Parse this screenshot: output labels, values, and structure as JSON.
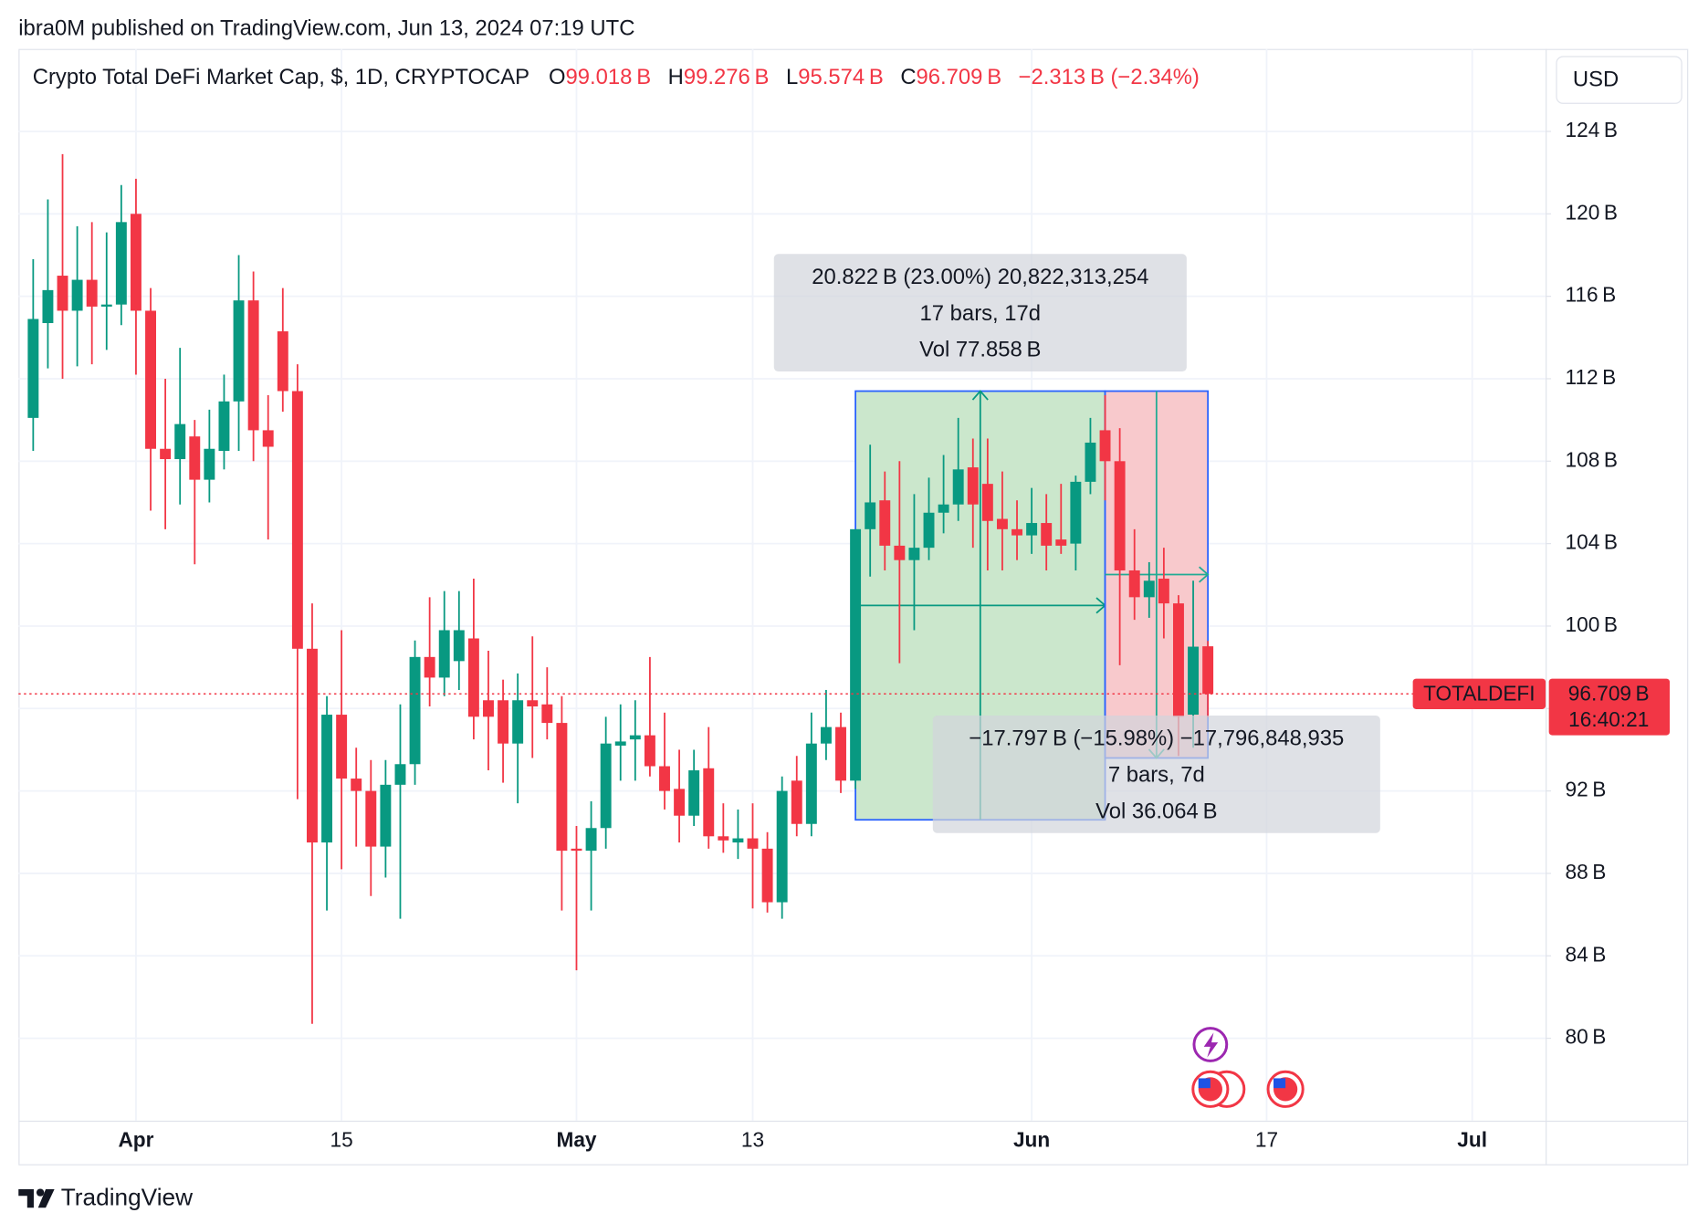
{
  "header": {
    "published": "ibra0M published on TradingView.com, Jun 13, 2024 07:19 UTC"
  },
  "footer": {
    "brand": "TradingView"
  },
  "chart_data": {
    "type": "candlestick",
    "legend": {
      "name": "Crypto Total DeFi Market Cap, $, 1D, CRYPTOCAP",
      "items": [
        {
          "key": "O",
          "text": "99.018 B"
        },
        {
          "key": "H",
          "text": "99.276 B"
        },
        {
          "key": "L",
          "text": "95.574 B"
        },
        {
          "key": "C",
          "text": "96.709 B"
        }
      ],
      "change": "−2.313 B (−2.34%)"
    },
    "currency": "USD",
    "up_color": "#089981",
    "down_color": "#f23645",
    "x": [
      "2024-03-25",
      "2024-03-26",
      "2024-03-27",
      "2024-03-28",
      "2024-03-29",
      "2024-03-30",
      "2024-03-31",
      "2024-04-01",
      "2024-04-02",
      "2024-04-03",
      "2024-04-04",
      "2024-04-05",
      "2024-04-06",
      "2024-04-07",
      "2024-04-08",
      "2024-04-09",
      "2024-04-10",
      "2024-04-11",
      "2024-04-12",
      "2024-04-13",
      "2024-04-14",
      "2024-04-15",
      "2024-04-16",
      "2024-04-17",
      "2024-04-18",
      "2024-04-19",
      "2024-04-20",
      "2024-04-21",
      "2024-04-22",
      "2024-04-23",
      "2024-04-24",
      "2024-04-25",
      "2024-04-26",
      "2024-04-27",
      "2024-04-28",
      "2024-04-29",
      "2024-04-30",
      "2024-05-01",
      "2024-05-02",
      "2024-05-03",
      "2024-05-04",
      "2024-05-05",
      "2024-05-06",
      "2024-05-07",
      "2024-05-08",
      "2024-05-09",
      "2024-05-10",
      "2024-05-11",
      "2024-05-12",
      "2024-05-13",
      "2024-05-14",
      "2024-05-15",
      "2024-05-16",
      "2024-05-17",
      "2024-05-18",
      "2024-05-19",
      "2024-05-20",
      "2024-05-21",
      "2024-05-22",
      "2024-05-23",
      "2024-05-24",
      "2024-05-25",
      "2024-05-26",
      "2024-05-27",
      "2024-05-28",
      "2024-05-29",
      "2024-05-30",
      "2024-05-31",
      "2024-06-01",
      "2024-06-02",
      "2024-06-03",
      "2024-06-04",
      "2024-06-05",
      "2024-06-06",
      "2024-06-07",
      "2024-06-08",
      "2024-06-09",
      "2024-06-10",
      "2024-06-11",
      "2024-06-12",
      "2024-06-13"
    ],
    "open": [
      110.1,
      114.7,
      117.0,
      115.3,
      116.8,
      115.5,
      115.6,
      120.0,
      115.3,
      108.6,
      108.1,
      109.2,
      107.1,
      108.5,
      110.9,
      115.8,
      109.5,
      114.3,
      111.4,
      98.9,
      89.5,
      95.7,
      92.6,
      92.0,
      89.3,
      92.3,
      93.3,
      98.5,
      97.5,
      98.3,
      99.4,
      96.4,
      96.4,
      94.3,
      96.4,
      96.2,
      95.3,
      89.2,
      89.1,
      90.2,
      94.2,
      94.5,
      94.7,
      93.2,
      92.1,
      90.8,
      93.1,
      89.8,
      89.5,
      89.7,
      89.2,
      86.6,
      92.5,
      90.4,
      94.3,
      95.1,
      92.5,
      104.7,
      106.1,
      103.9,
      103.2,
      103.8,
      105.5,
      105.9,
      107.7,
      106.9,
      105.2,
      104.7,
      104.4,
      105.0,
      104.2,
      104.0,
      107.0,
      109.5,
      108.0,
      102.7,
      101.4,
      102.3,
      101.1,
      95.7,
      99.018
    ],
    "high": [
      117.8,
      120.7,
      122.9,
      119.4,
      119.6,
      119.1,
      121.4,
      121.7,
      116.4,
      112.0,
      113.5,
      110.0,
      110.5,
      112.2,
      118.0,
      117.2,
      111.2,
      116.4,
      112.7,
      101.1,
      96.6,
      99.8,
      94.1,
      93.5,
      93.5,
      96.2,
      99.3,
      101.4,
      101.7,
      101.7,
      102.3,
      98.8,
      97.4,
      97.7,
      99.5,
      98.0,
      96.6,
      90.3,
      91.5,
      95.6,
      96.2,
      96.4,
      98.5,
      95.8,
      94.0,
      94.0,
      95.1,
      91.4,
      91.1,
      91.4,
      90.0,
      92.7,
      93.7,
      95.8,
      96.9,
      95.8,
      104.7,
      108.8,
      107.5,
      108.0,
      106.4,
      107.2,
      108.3,
      110.1,
      109.1,
      109.1,
      107.5,
      106.1,
      106.7,
      106.4,
      106.9,
      107.3,
      110.1,
      111.2,
      109.6,
      104.7,
      103.1,
      103.8,
      101.5,
      102.2,
      99.276
    ],
    "low": [
      108.5,
      112.5,
      112.0,
      112.6,
      112.7,
      113.4,
      114.6,
      112.2,
      105.6,
      104.7,
      105.9,
      103.0,
      106.0,
      107.6,
      108.5,
      108.0,
      104.2,
      110.4,
      91.6,
      80.7,
      86.2,
      88.2,
      89.3,
      86.9,
      87.8,
      85.8,
      92.3,
      96.1,
      96.6,
      96.9,
      94.5,
      93.0,
      92.4,
      91.4,
      93.6,
      94.5,
      86.2,
      83.3,
      86.2,
      89.2,
      92.5,
      92.5,
      92.7,
      91.1,
      89.5,
      90.3,
      89.2,
      89.0,
      88.7,
      86.3,
      86.1,
      85.8,
      89.8,
      89.8,
      93.5,
      91.9,
      92.1,
      102.4,
      102.7,
      98.2,
      99.8,
      103.2,
      104.5,
      105.1,
      103.8,
      102.7,
      102.7,
      103.2,
      103.5,
      102.7,
      103.5,
      102.7,
      106.4,
      106.1,
      98.1,
      100.3,
      100.4,
      99.4,
      93.7,
      94.1,
      95.574
    ],
    "close": [
      114.9,
      116.3,
      115.3,
      116.8,
      115.5,
      115.6,
      119.6,
      115.3,
      108.6,
      108.1,
      109.8,
      107.1,
      108.6,
      110.9,
      115.8,
      109.5,
      108.7,
      111.4,
      98.9,
      89.5,
      95.7,
      92.6,
      92.0,
      89.3,
      92.3,
      93.3,
      98.5,
      97.5,
      99.8,
      99.8,
      95.6,
      95.6,
      94.3,
      96.4,
      96.1,
      95.3,
      89.1,
      89.1,
      90.2,
      94.3,
      94.4,
      94.7,
      93.2,
      92.0,
      90.8,
      93.0,
      89.8,
      89.6,
      89.7,
      89.2,
      86.6,
      92.0,
      90.4,
      94.3,
      95.1,
      92.5,
      104.7,
      106.0,
      103.9,
      103.2,
      103.8,
      105.5,
      105.9,
      107.6,
      105.9,
      105.1,
      104.7,
      104.4,
      105.0,
      103.9,
      103.9,
      107.0,
      108.9,
      108.0,
      102.7,
      101.4,
      102.2,
      101.1,
      95.6,
      99.0,
      96.709
    ],
    "xlim": [
      "2024-03-24",
      "2024-07-06"
    ],
    "xticks": [
      {
        "value": "2024-04-01",
        "label": "Apr"
      },
      {
        "value": "2024-04-15",
        "label": "15"
      },
      {
        "value": "2024-05-01",
        "label": "May"
      },
      {
        "value": "2024-05-13",
        "label": "13"
      },
      {
        "value": "2024-06-01",
        "label": "Jun"
      },
      {
        "value": "2024-06-17",
        "label": "17"
      },
      {
        "value": "2024-07-01",
        "label": "Jul"
      }
    ],
    "ylim": [
      76,
      128
    ],
    "yticks": [
      {
        "value": 80,
        "label": "80 B"
      },
      {
        "value": 84,
        "label": "84 B"
      },
      {
        "value": 88,
        "label": "88 B"
      },
      {
        "value": 92,
        "label": "92 B"
      },
      {
        "value": 96,
        "label": "96 B"
      },
      {
        "value": 100,
        "label": "100 B"
      },
      {
        "value": 104,
        "label": "104 B"
      },
      {
        "value": 108,
        "label": "108 B"
      },
      {
        "value": 112,
        "label": "112 B"
      },
      {
        "value": 116,
        "label": "116 B"
      },
      {
        "value": 120,
        "label": "120 B"
      },
      {
        "value": 124,
        "label": "124 B"
      }
    ],
    "grid": true,
    "last_price": {
      "symbol": "TOTALDEFI",
      "text": "96.709 B",
      "countdown": "16:40:21"
    },
    "measures": [
      {
        "start": "2024-05-20",
        "end": "2024-06-06",
        "from": 90.6,
        "to": 111.4,
        "fill": "#c8e6c9",
        "lines": [
          "20.822 B (23.00%) 20,822,313,254",
          "17 bars, 17d",
          "Vol 77.858 B"
        ]
      },
      {
        "start": "2024-06-06",
        "end": "2024-06-13",
        "from": 111.4,
        "to": 93.6,
        "fill": "#f8c6c9",
        "lines": [
          "−17.797 B (−15.98%) −17,796,848,935",
          "7 bars, 7d",
          "Vol 36.064 B"
        ]
      }
    ]
  }
}
